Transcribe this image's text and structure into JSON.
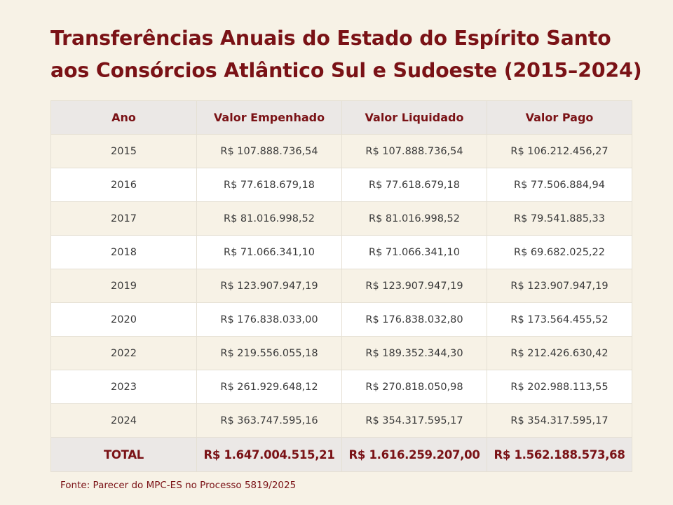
{
  "title": {
    "line1": "Transferências Anuais do Estado do Espírito Santo",
    "line2": "aos Consórcios Atlântico Sul e Sudoeste (2015–2024)"
  },
  "table": {
    "headers": [
      "Ano",
      "Valor Empenhado",
      "Valor Liquidado",
      "Valor Pago"
    ],
    "rows": [
      [
        "2015",
        "R$ 107.888.736,54",
        "R$ 107.888.736,54",
        "R$ 106.212.456,27"
      ],
      [
        "2016",
        "R$ 77.618.679,18",
        "R$ 77.618.679,18",
        "R$ 77.506.884,94"
      ],
      [
        "2017",
        "R$ 81.016.998,52",
        "R$ 81.016.998,52",
        "R$ 79.541.885,33"
      ],
      [
        "2018",
        "R$ 71.066.341,10",
        "R$ 71.066.341,10",
        "R$ 69.682.025,22"
      ],
      [
        "2019",
        "R$ 123.907.947,19",
        "R$ 123.907.947,19",
        "R$ 123.907.947,19"
      ],
      [
        "2020",
        "R$ 176.838.033,00",
        "R$ 176.838.032,80",
        "R$ 173.564.455,52"
      ],
      [
        "2022",
        "R$ 219.556.055,18",
        "R$ 189.352.344,30",
        "R$ 212.426.630,42"
      ],
      [
        "2023",
        "R$ 261.929.648,12",
        "R$ 270.818.050,98",
        "R$ 202.988.113,55"
      ],
      [
        "2024",
        "R$ 363.747.595,16",
        "R$ 354.317.595,17",
        "R$ 354.317.595,17"
      ]
    ],
    "total": [
      "TOTAL",
      "R$ 1.647.004.515,21",
      "R$ 1.616.259.207,00",
      "R$ 1.562.188.573,68"
    ]
  },
  "source": "Fonte: Parecer do MPC-ES no Processo 5819/2025",
  "colors": {
    "accent": "#7a1216",
    "background": "#f7f2e6",
    "header_bg": "#ebe8e6",
    "row_alt": "#ffffff"
  }
}
